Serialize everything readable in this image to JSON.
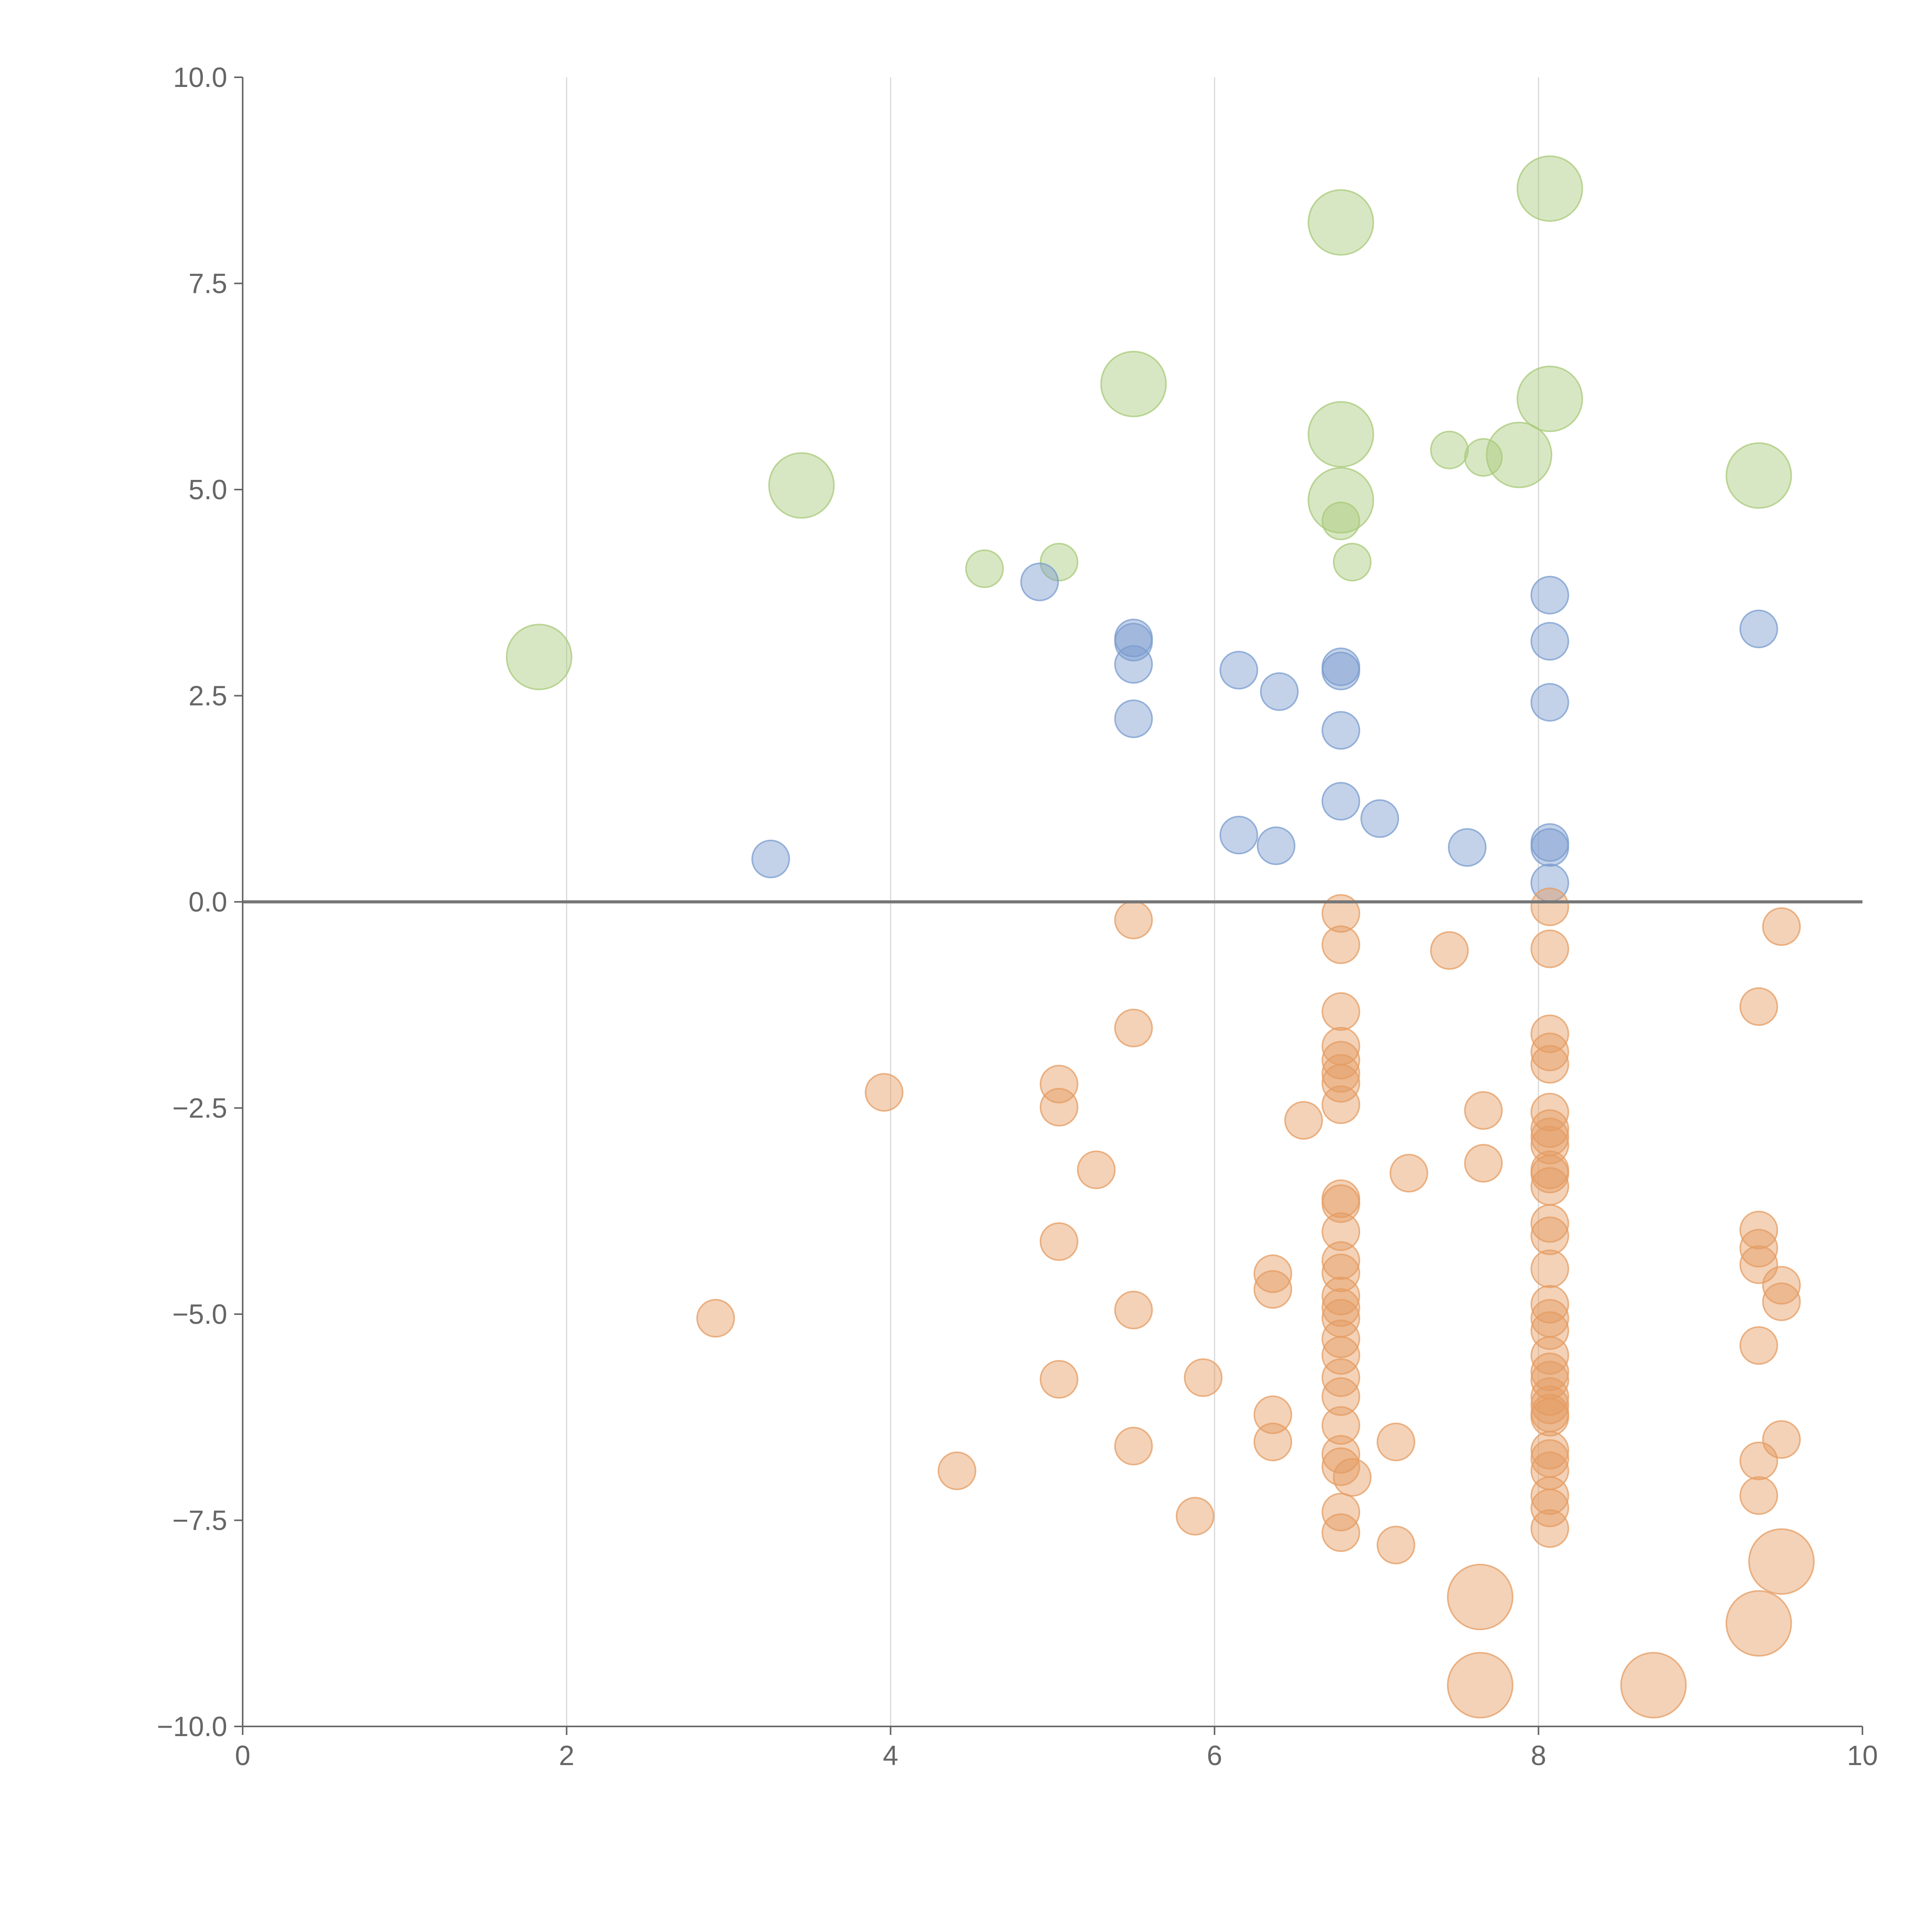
{
  "chart_data": {
    "type": "scatter",
    "subtype": "bubble",
    "title": "",
    "xlabel": "",
    "ylabel": "",
    "xlim": [
      0,
      10
    ],
    "ylim": [
      -10,
      10
    ],
    "x_ticks": [
      0,
      2,
      4,
      6,
      8,
      10
    ],
    "y_ticks": [
      -10,
      -7.5,
      -5,
      -2.5,
      0,
      2.5,
      5,
      7.5,
      10
    ],
    "x_tick_labels": [
      "0",
      "2",
      "4",
      "6",
      "8",
      "10"
    ],
    "y_tick_labels": [
      "−10.0",
      "−7.5",
      "−5.0",
      "−2.5",
      "0.0",
      "2.5",
      "5.0",
      "7.5",
      "10.0"
    ],
    "grid": "vertical",
    "reference_line_y": 0,
    "colors": {
      "green": "#a8c97a",
      "blue": "#7a9ccf",
      "orange": "#e59c62",
      "grid": "#d9d9d9",
      "axis": "#666666"
    },
    "series": [
      {
        "name": "green",
        "color": "#a8c97a",
        "points": [
          {
            "x": 1.83,
            "y": 2.97,
            "size": 3
          },
          {
            "x": 3.45,
            "y": 5.05,
            "size": 3
          },
          {
            "x": 4.58,
            "y": 4.04,
            "size": 1
          },
          {
            "x": 5.04,
            "y": 4.12,
            "size": 1
          },
          {
            "x": 5.5,
            "y": 6.28,
            "size": 3
          },
          {
            "x": 6.78,
            "y": 8.24,
            "size": 3
          },
          {
            "x": 6.78,
            "y": 5.67,
            "size": 3
          },
          {
            "x": 6.78,
            "y": 4.87,
            "size": 3
          },
          {
            "x": 6.78,
            "y": 4.62,
            "size": 1
          },
          {
            "x": 6.85,
            "y": 4.12,
            "size": 1
          },
          {
            "x": 7.45,
            "y": 5.48,
            "size": 1
          },
          {
            "x": 7.66,
            "y": 5.39,
            "size": 1
          },
          {
            "x": 7.88,
            "y": 5.42,
            "size": 3
          },
          {
            "x": 8.07,
            "y": 8.65,
            "size": 3
          },
          {
            "x": 8.07,
            "y": 6.1,
            "size": 3
          },
          {
            "x": 9.36,
            "y": 5.17,
            "size": 3
          }
        ]
      },
      {
        "name": "blue",
        "color": "#7a9ccf",
        "points": [
          {
            "x": 3.26,
            "y": 0.52,
            "size": 1
          },
          {
            "x": 4.92,
            "y": 3.88,
            "size": 1
          },
          {
            "x": 5.5,
            "y": 3.2,
            "size": 1
          },
          {
            "x": 5.5,
            "y": 3.15,
            "size": 1
          },
          {
            "x": 5.5,
            "y": 2.88,
            "size": 1
          },
          {
            "x": 5.5,
            "y": 2.22,
            "size": 1
          },
          {
            "x": 6.15,
            "y": 2.81,
            "size": 1
          },
          {
            "x": 6.15,
            "y": 0.81,
            "size": 1
          },
          {
            "x": 6.4,
            "y": 2.55,
            "size": 1
          },
          {
            "x": 6.38,
            "y": 0.68,
            "size": 1
          },
          {
            "x": 6.78,
            "y": 2.85,
            "size": 1
          },
          {
            "x": 6.78,
            "y": 2.8,
            "size": 1
          },
          {
            "x": 6.78,
            "y": 2.08,
            "size": 1
          },
          {
            "x": 6.78,
            "y": 1.22,
            "size": 1
          },
          {
            "x": 7.02,
            "y": 1.01,
            "size": 1
          },
          {
            "x": 7.56,
            "y": 0.66,
            "size": 1
          },
          {
            "x": 8.07,
            "y": 3.72,
            "size": 1
          },
          {
            "x": 8.07,
            "y": 3.16,
            "size": 1
          },
          {
            "x": 8.07,
            "y": 2.42,
            "size": 1
          },
          {
            "x": 8.07,
            "y": 0.72,
            "size": 1
          },
          {
            "x": 8.07,
            "y": 0.66,
            "size": 1
          },
          {
            "x": 8.07,
            "y": 0.23,
            "size": 1
          },
          {
            "x": 9.36,
            "y": 3.31,
            "size": 1
          }
        ]
      },
      {
        "name": "orange",
        "color": "#e59c62",
        "points": [
          {
            "x": 2.92,
            "y": -5.05,
            "size": 1
          },
          {
            "x": 3.96,
            "y": -2.31,
            "size": 1
          },
          {
            "x": 4.41,
            "y": -6.9,
            "size": 1
          },
          {
            "x": 5.04,
            "y": -2.21,
            "size": 1
          },
          {
            "x": 5.04,
            "y": -2.49,
            "size": 1
          },
          {
            "x": 5.04,
            "y": -4.12,
            "size": 1
          },
          {
            "x": 5.04,
            "y": -5.79,
            "size": 1
          },
          {
            "x": 5.27,
            "y": -3.25,
            "size": 1
          },
          {
            "x": 5.5,
            "y": -0.22,
            "size": 1
          },
          {
            "x": 5.5,
            "y": -1.53,
            "size": 1
          },
          {
            "x": 5.5,
            "y": -4.95,
            "size": 1
          },
          {
            "x": 5.5,
            "y": -6.6,
            "size": 1
          },
          {
            "x": 5.88,
            "y": -7.45,
            "size": 1
          },
          {
            "x": 5.93,
            "y": -5.77,
            "size": 1
          },
          {
            "x": 6.36,
            "y": -4.51,
            "size": 1
          },
          {
            "x": 6.36,
            "y": -4.7,
            "size": 1
          },
          {
            "x": 6.36,
            "y": -6.22,
            "size": 1
          },
          {
            "x": 6.36,
            "y": -6.55,
            "size": 1
          },
          {
            "x": 6.55,
            "y": -2.65,
            "size": 1
          },
          {
            "x": 6.78,
            "y": -0.14,
            "size": 1
          },
          {
            "x": 6.78,
            "y": -0.52,
            "size": 1
          },
          {
            "x": 6.78,
            "y": -1.33,
            "size": 1
          },
          {
            "x": 6.78,
            "y": -1.75,
            "size": 1
          },
          {
            "x": 6.78,
            "y": -1.92,
            "size": 1
          },
          {
            "x": 6.78,
            "y": -2.08,
            "size": 1
          },
          {
            "x": 6.78,
            "y": -2.2,
            "size": 1
          },
          {
            "x": 6.78,
            "y": -2.46,
            "size": 1
          },
          {
            "x": 6.78,
            "y": -3.6,
            "size": 1
          },
          {
            "x": 6.78,
            "y": -3.66,
            "size": 1
          },
          {
            "x": 6.78,
            "y": -4.0,
            "size": 1
          },
          {
            "x": 6.78,
            "y": -4.35,
            "size": 1
          },
          {
            "x": 6.78,
            "y": -4.5,
            "size": 1
          },
          {
            "x": 6.78,
            "y": -4.78,
            "size": 1
          },
          {
            "x": 6.78,
            "y": -4.92,
            "size": 1
          },
          {
            "x": 6.78,
            "y": -5.05,
            "size": 1
          },
          {
            "x": 6.78,
            "y": -5.3,
            "size": 1
          },
          {
            "x": 6.78,
            "y": -5.5,
            "size": 1
          },
          {
            "x": 6.78,
            "y": -5.77,
            "size": 1
          },
          {
            "x": 6.78,
            "y": -6.0,
            "size": 1
          },
          {
            "x": 6.78,
            "y": -6.35,
            "size": 1
          },
          {
            "x": 6.78,
            "y": -6.7,
            "size": 1
          },
          {
            "x": 6.78,
            "y": -6.85,
            "size": 1
          },
          {
            "x": 6.85,
            "y": -6.98,
            "size": 1
          },
          {
            "x": 6.78,
            "y": -7.4,
            "size": 1
          },
          {
            "x": 6.78,
            "y": -7.65,
            "size": 1
          },
          {
            "x": 7.12,
            "y": -6.55,
            "size": 1
          },
          {
            "x": 7.12,
            "y": -7.8,
            "size": 1
          },
          {
            "x": 7.2,
            "y": -3.29,
            "size": 1
          },
          {
            "x": 7.45,
            "y": -0.59,
            "size": 1
          },
          {
            "x": 7.66,
            "y": -2.53,
            "size": 1
          },
          {
            "x": 7.66,
            "y": -3.17,
            "size": 1
          },
          {
            "x": 8.07,
            "y": -0.06,
            "size": 1
          },
          {
            "x": 8.07,
            "y": -0.57,
            "size": 1
          },
          {
            "x": 8.07,
            "y": -1.6,
            "size": 1
          },
          {
            "x": 8.07,
            "y": -1.82,
            "size": 1
          },
          {
            "x": 8.07,
            "y": -1.97,
            "size": 1
          },
          {
            "x": 8.07,
            "y": -2.55,
            "size": 1
          },
          {
            "x": 8.07,
            "y": -2.75,
            "size": 1
          },
          {
            "x": 8.07,
            "y": -2.85,
            "size": 1
          },
          {
            "x": 8.07,
            "y": -2.95,
            "size": 1
          },
          {
            "x": 8.07,
            "y": -3.25,
            "size": 1
          },
          {
            "x": 8.07,
            "y": -3.3,
            "size": 1
          },
          {
            "x": 8.07,
            "y": -3.45,
            "size": 1
          },
          {
            "x": 8.07,
            "y": -3.9,
            "size": 1
          },
          {
            "x": 8.07,
            "y": -4.05,
            "size": 1
          },
          {
            "x": 8.07,
            "y": -4.45,
            "size": 1
          },
          {
            "x": 8.07,
            "y": -4.88,
            "size": 1
          },
          {
            "x": 8.07,
            "y": -5.05,
            "size": 1
          },
          {
            "x": 8.07,
            "y": -5.2,
            "size": 1
          },
          {
            "x": 8.07,
            "y": -5.5,
            "size": 1
          },
          {
            "x": 8.07,
            "y": -5.7,
            "size": 1
          },
          {
            "x": 8.07,
            "y": -5.8,
            "size": 1
          },
          {
            "x": 8.07,
            "y": -6.0,
            "size": 1
          },
          {
            "x": 8.07,
            "y": -6.1,
            "size": 1
          },
          {
            "x": 8.07,
            "y": -6.2,
            "size": 1
          },
          {
            "x": 8.07,
            "y": -6.25,
            "size": 1
          },
          {
            "x": 8.07,
            "y": -6.65,
            "size": 1
          },
          {
            "x": 8.07,
            "y": -6.75,
            "size": 1
          },
          {
            "x": 8.07,
            "y": -6.9,
            "size": 1
          },
          {
            "x": 8.07,
            "y": -7.2,
            "size": 1
          },
          {
            "x": 8.07,
            "y": -7.35,
            "size": 1
          },
          {
            "x": 8.07,
            "y": -7.6,
            "size": 1
          },
          {
            "x": 9.36,
            "y": -1.27,
            "size": 1
          },
          {
            "x": 9.36,
            "y": -3.98,
            "size": 1
          },
          {
            "x": 9.36,
            "y": -4.2,
            "size": 1
          },
          {
            "x": 9.36,
            "y": -4.4,
            "size": 1
          },
          {
            "x": 9.36,
            "y": -5.38,
            "size": 1
          },
          {
            "x": 9.36,
            "y": -6.78,
            "size": 1
          },
          {
            "x": 9.36,
            "y": -7.2,
            "size": 1
          },
          {
            "x": 9.5,
            "y": -0.3,
            "size": 1
          },
          {
            "x": 9.5,
            "y": -4.65,
            "size": 1
          },
          {
            "x": 9.5,
            "y": -4.85,
            "size": 1
          },
          {
            "x": 9.5,
            "y": -6.52,
            "size": 1
          },
          {
            "x": 7.64,
            "y": -8.43,
            "size": 3
          },
          {
            "x": 7.64,
            "y": -9.5,
            "size": 3
          },
          {
            "x": 8.71,
            "y": -9.5,
            "size": 3
          },
          {
            "x": 9.5,
            "y": -8.0,
            "size": 3
          },
          {
            "x": 9.36,
            "y": -8.75,
            "size": 3
          }
        ]
      }
    ]
  }
}
